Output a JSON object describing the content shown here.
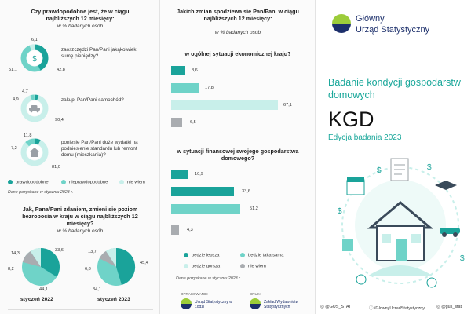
{
  "colors": {
    "teal": "#1aa39a",
    "mint": "#6fd3c8",
    "light": "#c8efea",
    "gray": "#a9acb0",
    "title_teal": "#19a79a"
  },
  "left": {
    "q1_title": "Czy prawdopodobne jest, że w ciągu najbliższych 12 miesięcy:",
    "q1_unit": "w % badanych osób",
    "items": [
      {
        "label": "zaoszczędzi Pan/Pani jakąkolwiek sumę pieniędzy?",
        "icon": "money-bag-icon",
        "v": [
          "51,1",
          "42,8",
          "6,1"
        ]
      },
      {
        "label": "zakupi Pan/Pani samochód?",
        "icon": "car-icon",
        "v": [
          "4,9",
          "4,7",
          "90,4"
        ]
      },
      {
        "label": "poniesie Pan/Pani duże wydatki na podniesienie standardu lub remont domu (mieszkania)?",
        "icon": "house-icon",
        "v": [
          "7,2",
          "11,8",
          "81,0"
        ]
      }
    ],
    "legend": [
      "prawdopodobne",
      "nieprawdopodobne",
      "nie wiem"
    ],
    "source": "Dane pozyskane w styczniu 2023 r.",
    "q2_title": "Jak, Pana/Pani zdaniem, zmieni się poziom bezrobocia w kraju w ciągu najbliższych 12 miesięcy?",
    "q2_unit": "w % badanych osób",
    "pies": [
      {
        "label": "styczeń 2022",
        "v": [
          "33,6",
          "14,3",
          "8,2",
          "44,1"
        ]
      },
      {
        "label": "styczeń 2023",
        "v": [
          "45,4",
          "13,7",
          "6,8",
          "34,1"
        ]
      }
    ]
  },
  "middle": {
    "title": "Jakich zmian spodziewa się Pan/Pani w ciągu najbliższych 12 miesięcy:",
    "unit": "w % badanych osób",
    "sec1": "w ogólnej sytuacji ekonomicznej kraju?",
    "sec1_values": [
      "8,6",
      "17,8",
      "67,1",
      "6,5"
    ],
    "sec2": "w sytuacji finansowej swojego gospodarstwa domowego?",
    "sec2_values": [
      "10,9",
      "33,6",
      "51,2",
      "4,3"
    ],
    "legend": [
      "będzie lepsza",
      "będzie taka sama",
      "będzie gorsza",
      "nie wiem"
    ],
    "source": "Dane pozyskane w styczniu 2023 r.",
    "footer_left_label": "OPRACOWANIE:",
    "footer_left_org": "Urząd Statystyczny w Łodzi",
    "footer_right_label": "DRUK:",
    "footer_right_org": "Zakład Wydawnictw Statystycznych"
  },
  "right": {
    "logo_line1": "Główny",
    "logo_line2": "Urząd Statystyczny",
    "title_line1": "Badanie kondycji gospodarstw",
    "title_line2": "domowych",
    "big": "KGD",
    "edition": "Edycja badania 2023",
    "social": [
      "@GUS_STAT",
      "/GlownyUrzadStatystyczny",
      "@gus_stat"
    ]
  }
}
